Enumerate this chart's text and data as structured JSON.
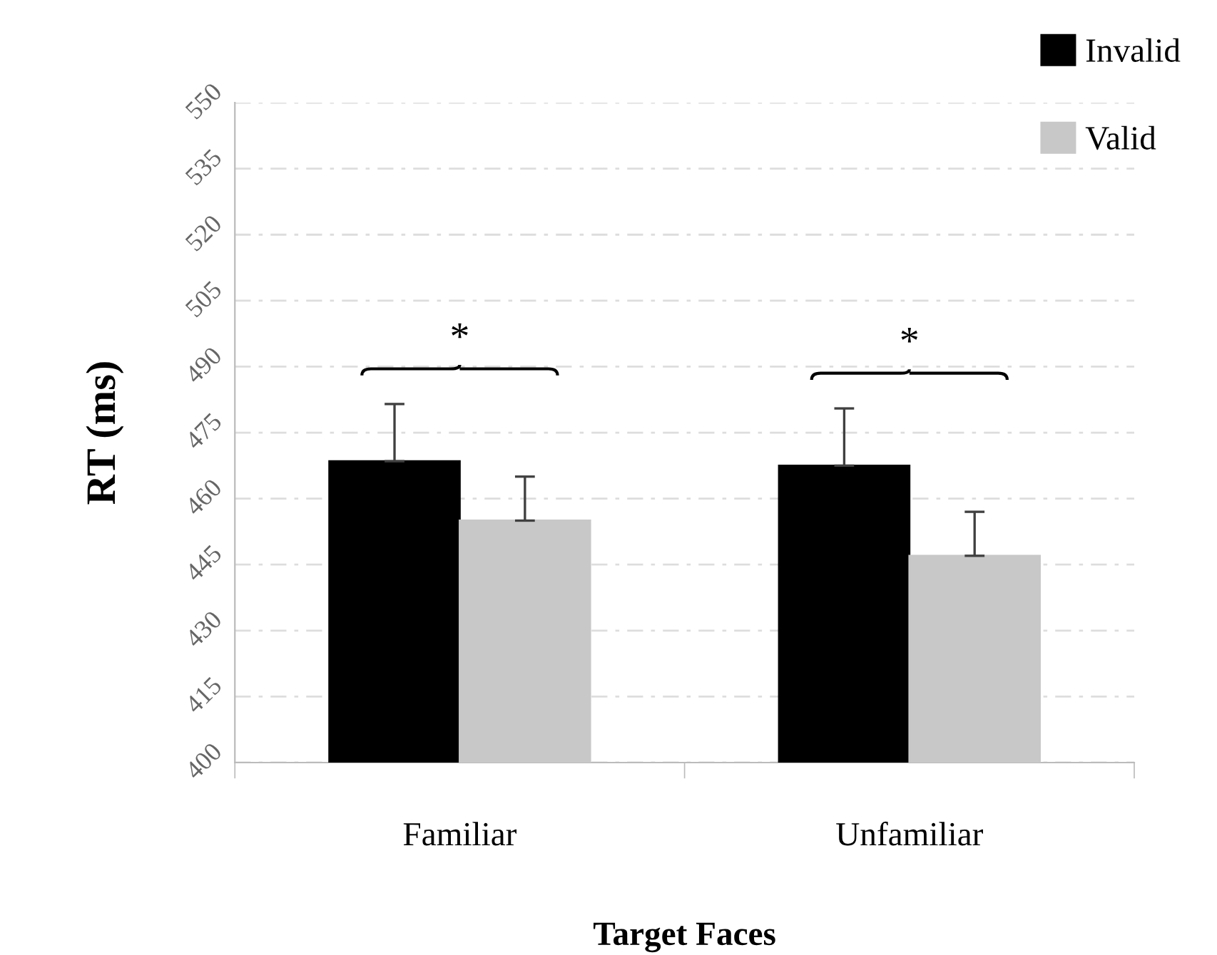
{
  "chart_data": {
    "type": "bar",
    "xlabel": "Target Faces",
    "ylabel": "RT (ms)",
    "categories": [
      "Familiar",
      "Unfamiliar"
    ],
    "series": [
      {
        "name": "Invalid",
        "color": "#000000",
        "values": [
          468.5,
          467.5
        ],
        "errors": [
          13,
          13
        ]
      },
      {
        "name": "Valid",
        "color": "#c8c8c8",
        "values": [
          455,
          447
        ],
        "errors": [
          10,
          10
        ]
      }
    ],
    "ylim": [
      400,
      550
    ],
    "yticks": [
      400,
      415,
      430,
      445,
      460,
      475,
      490,
      505,
      520,
      535,
      550
    ],
    "grid": "y",
    "legend": "top right",
    "annotations": [
      "*",
      "*"
    ]
  }
}
